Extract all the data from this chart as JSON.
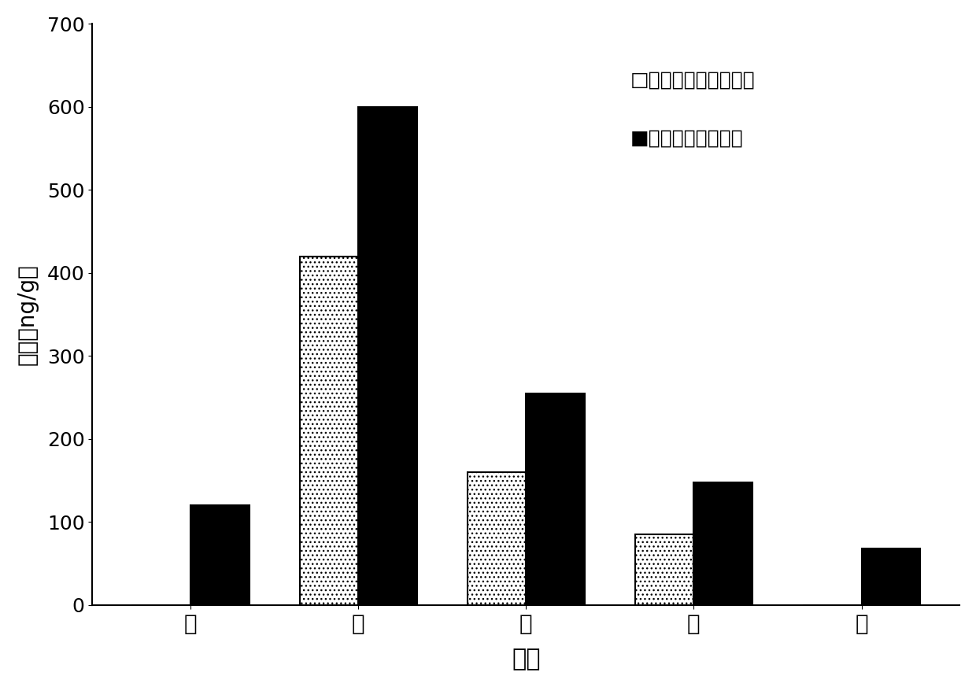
{
  "categories": [
    "心",
    "脾",
    "肊",
    "肆",
    "肝"
  ],
  "local_values": [
    0,
    420,
    160,
    85,
    0
  ],
  "iv_values": [
    120,
    600,
    255,
    148,
    68
  ],
  "ylabel_line1": "浓度（ng/g）",
  "xlabel": "组织",
  "ylim": [
    0,
    700
  ],
  "yticks": [
    0,
    100,
    200,
    300,
    400,
    500,
    600,
    700
  ],
  "legend_local": "口米托蔡醚溶液局部",
  "legend_iv": "米托蔡醚溶液静脉",
  "bar_width": 0.35,
  "background_color": "#ffffff",
  "local_color": "#ffffff",
  "iv_color": "#000000",
  "edge_color": "#000000",
  "label_fontsize": 20,
  "tick_fontsize": 18,
  "legend_fontsize": 18,
  "xlabel_fontsize": 22
}
